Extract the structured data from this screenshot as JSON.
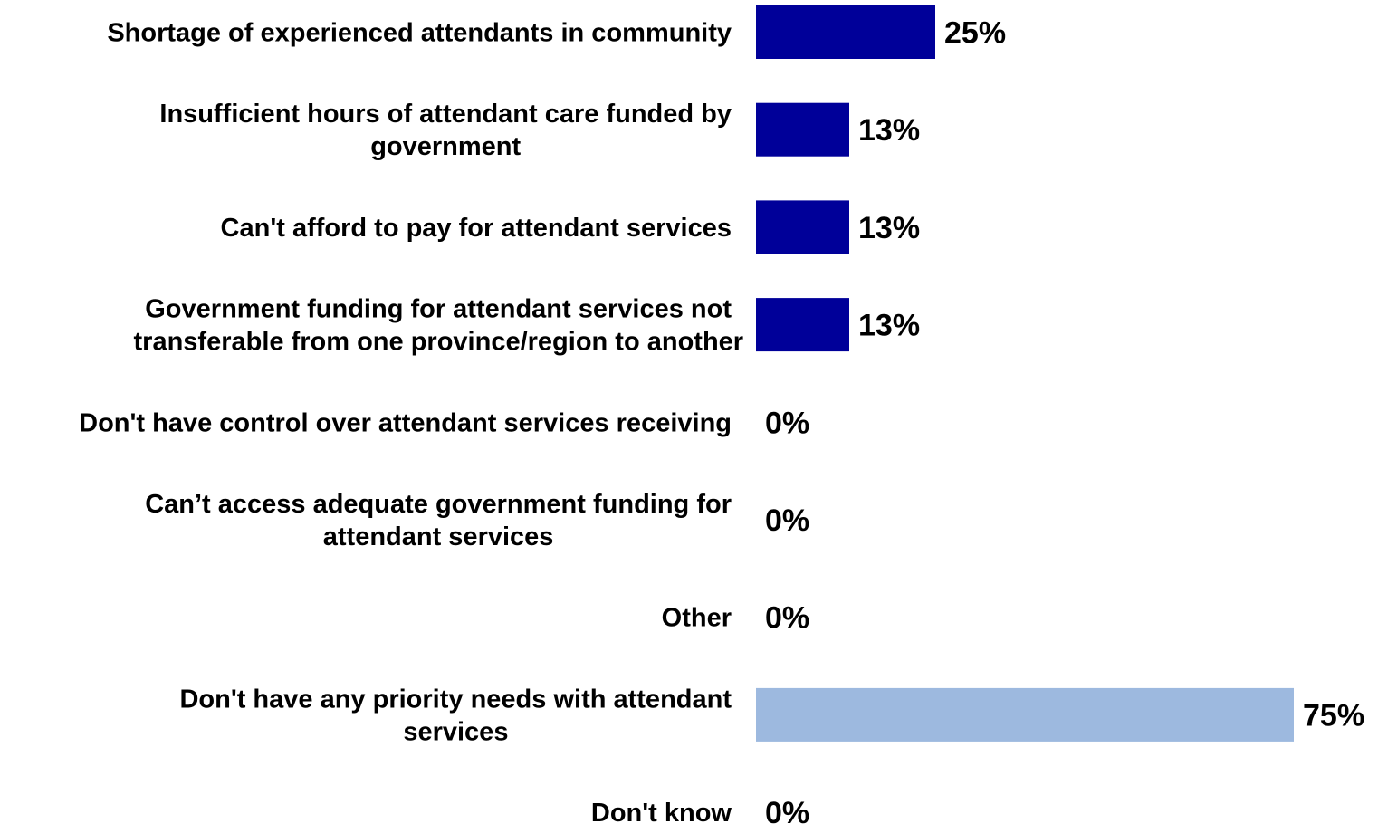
{
  "chart_data": {
    "type": "bar",
    "orientation": "horizontal",
    "title": "",
    "xlabel": "",
    "ylabel": "",
    "xlim": [
      0,
      75
    ],
    "grid": false,
    "legend": "none",
    "value_format": "percent",
    "categories": [
      [
        "Shortage of experienced attendants in community"
      ],
      [
        "Insufficient hours of attendant care funded by",
        "government"
      ],
      [
        "Can't afford to pay for attendant services"
      ],
      [
        "Government funding for attendant services not",
        "transferable from one province/region to another"
      ],
      [
        "Don't have control over attendant services receiving"
      ],
      [
        "Can’t access adequate government funding for",
        "attendant services"
      ],
      [
        "Other"
      ],
      [
        "Don't have any priority needs with attendant",
        "services"
      ],
      [
        "Don't know"
      ]
    ],
    "values": [
      25,
      13,
      13,
      13,
      0,
      0,
      0,
      75,
      0
    ],
    "value_labels": [
      "25%",
      "13%",
      "13%",
      "13%",
      "0%",
      "0%",
      "0%",
      "75%",
      "0%"
    ],
    "bar_colors": [
      "#000099",
      "#000099",
      "#000099",
      "#000099",
      "#000099",
      "#000099",
      "#000099",
      "#9DB9DF",
      "#000099"
    ]
  }
}
